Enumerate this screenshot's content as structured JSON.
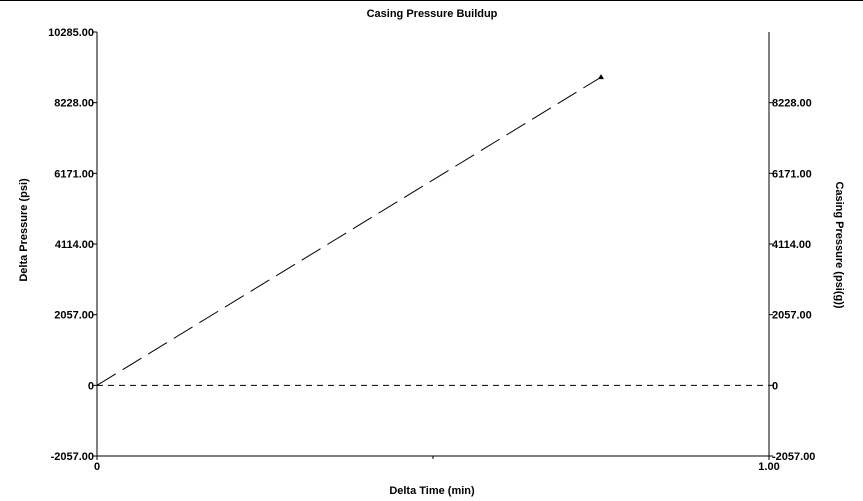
{
  "chart_data": {
    "type": "line",
    "title": "Casing Pressure Buildup",
    "xlabel": "Delta Time (min)",
    "ylabel": "Delta Pressure (psi)",
    "ylabel_right": "Casing Pressure (psi(g))",
    "xlim": [
      0,
      1.0
    ],
    "ylim": [
      -2057,
      10285
    ],
    "x_tick_labels": [
      "0",
      "1.00"
    ],
    "y_ticks_left": [
      {
        "value": 10285,
        "label": "10285.00"
      },
      {
        "value": 8228,
        "label": "8228.00"
      },
      {
        "value": 6171,
        "label": "6171.00"
      },
      {
        "value": 4114,
        "label": "4114.00"
      },
      {
        "value": 2057,
        "label": "2057.00"
      },
      {
        "value": 0,
        "label": "0"
      },
      {
        "value": -2057,
        "label": "-2057.00"
      }
    ],
    "y_ticks_right": [
      {
        "value": 8228,
        "label": "8228.00"
      },
      {
        "value": 6171,
        "label": "6171.00"
      },
      {
        "value": 4114,
        "label": "4114.00"
      },
      {
        "value": 2057,
        "label": "2057.00"
      },
      {
        "value": 0,
        "label": "0"
      },
      {
        "value": -2057,
        "label": "-2057.00"
      }
    ],
    "series": [
      {
        "values": [
          [
            0,
            0
          ],
          [
            0.75,
            8970
          ]
        ],
        "style": "long-dash",
        "marker_end": "triangle",
        "color": "#000000"
      },
      {
        "values": [
          [
            0,
            0
          ],
          [
            1.0,
            0
          ]
        ],
        "style": "short-dash",
        "color": "#000000"
      }
    ],
    "grid": false,
    "legend": "none"
  }
}
